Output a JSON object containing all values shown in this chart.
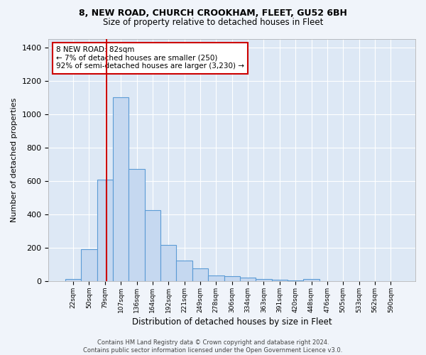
{
  "title1": "8, NEW ROAD, CHURCH CROOKHAM, FLEET, GU52 6BH",
  "title2": "Size of property relative to detached houses in Fleet",
  "xlabel": "Distribution of detached houses by size in Fleet",
  "ylabel": "Number of detached properties",
  "bar_labels": [
    "22sqm",
    "50sqm",
    "79sqm",
    "107sqm",
    "136sqm",
    "164sqm",
    "192sqm",
    "221sqm",
    "249sqm",
    "278sqm",
    "306sqm",
    "334sqm",
    "363sqm",
    "391sqm",
    "420sqm",
    "448sqm",
    "476sqm",
    "505sqm",
    "533sqm",
    "562sqm",
    "590sqm"
  ],
  "bar_values": [
    15,
    190,
    610,
    1100,
    670,
    425,
    215,
    125,
    75,
    35,
    30,
    20,
    15,
    10,
    5,
    15,
    0,
    0,
    0,
    0,
    0
  ],
  "bar_color": "#c5d8f0",
  "bar_edge_color": "#5b9bd5",
  "bg_color": "#dde8f5",
  "fig_bg_color": "#f0f4fa",
  "grid_color": "#ffffff",
  "vline_color": "#cc0000",
  "vline_x": 2.09,
  "annotation_text": "8 NEW ROAD: 82sqm\n← 7% of detached houses are smaller (250)\n92% of semi-detached houses are larger (3,230) →",
  "annotation_box_color": "#ffffff",
  "annotation_box_edge": "#cc0000",
  "footer": "Contains HM Land Registry data © Crown copyright and database right 2024.\nContains public sector information licensed under the Open Government Licence v3.0.",
  "ylim": [
    0,
    1450
  ],
  "yticks": [
    0,
    200,
    400,
    600,
    800,
    1000,
    1200,
    1400
  ]
}
